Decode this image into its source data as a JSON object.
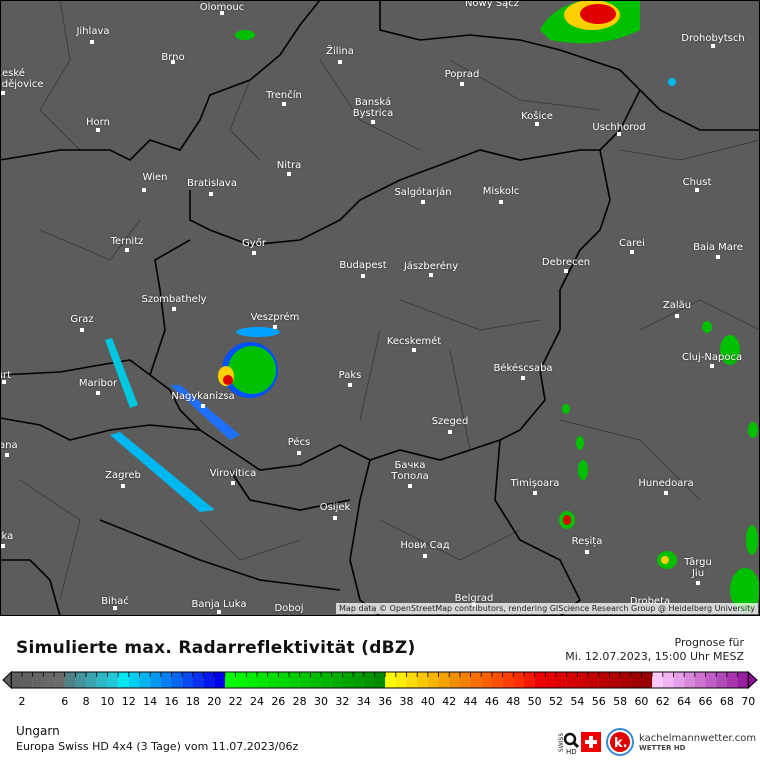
{
  "map": {
    "cities": [
      "Olomouc",
      "Nowy Sącz",
      "Jihlava",
      "Brno",
      "Žilina",
      "Poprad",
      "Drohobytsch",
      "České",
      "Budějovice",
      "Trenčín",
      "Banská",
      "Bystrica",
      "Košice",
      "Uschhorod",
      "Horn",
      "Nitra",
      "Wien",
      "Bratislava",
      "Chust",
      "Salgótarján",
      "Miskolc",
      "Ternitz",
      "Győr",
      "Carei",
      "Baia Mare",
      "Budapest",
      "Jászberény",
      "Debrecen",
      "Szombathely",
      "Zalău",
      "Veszprém",
      "Graz",
      "Kecskemét",
      "Cluj-Napoca",
      "Paks",
      "Maribor",
      "Békéscsaba",
      "Nagykanizsa",
      "Klagenfurt",
      "Szeged",
      "Ljubljana",
      "Pécs",
      "Бачка",
      "Тополa",
      "Virovitica",
      "Zagreb",
      "Timișoara",
      "Hunedoara",
      "Osijek",
      "Reșița",
      "Нови Сад",
      "Rijeka",
      "Târgu",
      "Jiu",
      "Belgrad",
      "Bihać",
      "Banja Luka",
      "Doboj",
      "Drobeta"
    ],
    "attribution": "Map data © OpenStreetMap contributors, rendering GIScience Research Group @ Heidelberg University",
    "background_color": "#5c5c5c"
  },
  "legend": {
    "title": "Simulierte max. Radarreflektivität (dBZ)",
    "forecast_label": "Prognose für",
    "forecast_time": "Mi. 12.07.2023, 15:00 Uhr MESZ",
    "ticks": [
      "2",
      "6",
      "8",
      "10",
      "12",
      "14",
      "16",
      "18",
      "20",
      "22",
      "24",
      "26",
      "28",
      "30",
      "32",
      "34",
      "36",
      "38",
      "40",
      "42",
      "44",
      "46",
      "48",
      "50",
      "52",
      "54",
      "56",
      "58",
      "60",
      "62",
      "64",
      "66",
      "68",
      "70"
    ],
    "colorscale": [
      {
        "dbz": 1,
        "color": "#5e5e5e"
      },
      {
        "dbz": 5,
        "color": "#6a6a6a"
      },
      {
        "dbz": 6,
        "color": "#4f8088"
      },
      {
        "dbz": 10,
        "color": "#22c8d8"
      },
      {
        "dbz": 11,
        "color": "#00e8f0"
      },
      {
        "dbz": 18,
        "color": "#0a30f0"
      },
      {
        "dbz": 20,
        "color": "#0000ee"
      },
      {
        "dbz": 21,
        "color": "#00ff00"
      },
      {
        "dbz": 35,
        "color": "#008c00"
      },
      {
        "dbz": 36,
        "color": "#ffff00"
      },
      {
        "dbz": 42,
        "color": "#f09000"
      },
      {
        "dbz": 48,
        "color": "#ff3000"
      },
      {
        "dbz": 50,
        "color": "#f00000"
      },
      {
        "dbz": 60,
        "color": "#960000"
      },
      {
        "dbz": 61,
        "color": "#ffc8ff"
      },
      {
        "dbz": 70,
        "color": "#8c0a96"
      }
    ]
  },
  "footer": {
    "region": "Ungarn",
    "model": "Europa Swiss HD 4x4 (3 Tage) vom  11.07.2023/06z",
    "swiss_hd": "SWISS HD",
    "brand": "kachelmannwetter.com",
    "brand_sub": "WETTER HD",
    "brand_letter": "k."
  }
}
